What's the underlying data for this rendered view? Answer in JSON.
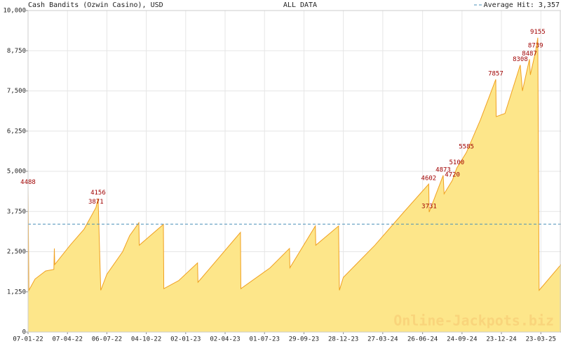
{
  "chart_data": {
    "type": "area",
    "title": "Cash Bandits (Ozwin Casino), USD",
    "subtitle": "ALL DATA",
    "average_label": "Average Hit: 3,357",
    "average": 3357,
    "watermark": "Online-Jackpots.biz",
    "line_color": "#f0a020",
    "fill_color": "#fde68a",
    "average_color": "#4a90b8",
    "label_color": "#a00000",
    "grid": true,
    "xlim": [
      "07-01-22",
      "08-05-25"
    ],
    "xticks": [
      "07-01-22",
      "07-04-22",
      "06-07-22",
      "04-10-22",
      "02-01-23",
      "02-04-23",
      "01-07-23",
      "29-09-23",
      "28-12-23",
      "27-03-24",
      "26-06-24",
      "24-09-24",
      "23-12-24",
      "23-03-25"
    ],
    "ylim": [
      0,
      10000
    ],
    "yticks": [
      0,
      {
        "value": 1250,
        "label": "1,250"
      },
      {
        "value": 2500,
        "label": "2,500"
      },
      {
        "value": 3750,
        "label": "3,750"
      },
      {
        "value": 5000,
        "label": "5,000"
      },
      {
        "value": 6250,
        "label": "6,250"
      },
      {
        "value": 7500,
        "label": "7,500"
      },
      {
        "value": 8750,
        "label": "8,750"
      },
      {
        "value": 10000,
        "label": "10,000"
      }
    ],
    "x": [
      "07-01-22",
      "09-01-22",
      "23-01-22",
      "16-02-22",
      "07-03-22",
      "08-03-22",
      "09-03-22",
      "13-04-22",
      "15-05-22",
      "11-06-22",
      "16-06-22",
      "22-06-22",
      "06-07-22",
      "11-08-22",
      "27-08-22",
      "17-09-22",
      "18-09-22",
      "12-11-22",
      "13-11-22",
      "17-12-22",
      "29-01-23",
      "30-01-23",
      "07-05-23",
      "08-05-23",
      "14-07-23",
      "27-08-23",
      "28-08-23",
      "25-10-23",
      "26-10-23",
      "17-12-23",
      "19-12-23",
      "28-12-23",
      "09-03-24",
      "12-05-24",
      "10-07-24",
      "11-07-24",
      "12-08-24",
      "14-08-24",
      "02-09-24",
      "12-09-24",
      "04-10-24",
      "05-11-24",
      "10-12-24",
      "11-12-24",
      "31-12-24",
      "04-02-25",
      "09-02-25",
      "25-02-25",
      "27-02-25",
      "11-03-25",
      "16-03-25",
      "19-03-25",
      "08-05-25"
    ],
    "values": [
      4488,
      1300,
      1650,
      1900,
      1950,
      2600,
      2100,
      2700,
      3200,
      3871,
      4156,
      1300,
      1800,
      2500,
      3000,
      3400,
      2700,
      3350,
      1350,
      1600,
      2150,
      1550,
      3100,
      1350,
      2000,
      2600,
      2000,
      3300,
      2700,
      3300,
      1300,
      1700,
      2700,
      3700,
      4602,
      3731,
      4873,
      4300,
      4720,
      5100,
      5585,
      6600,
      7857,
      6700,
      6800,
      8308,
      7500,
      8487,
      8000,
      8739,
      9155,
      1300,
      2100
    ],
    "value_labels": [
      "4488",
      null,
      null,
      null,
      null,
      null,
      null,
      null,
      null,
      "3871",
      "4156",
      null,
      null,
      null,
      null,
      null,
      null,
      null,
      null,
      null,
      null,
      null,
      null,
      null,
      null,
      null,
      null,
      null,
      null,
      null,
      null,
      null,
      null,
      null,
      "4602",
      "3731",
      "4873",
      null,
      "4720",
      "5100",
      "5585",
      null,
      "7857",
      null,
      null,
      "8308",
      null,
      "8487",
      null,
      "8739",
      "9155",
      null,
      null
    ]
  }
}
